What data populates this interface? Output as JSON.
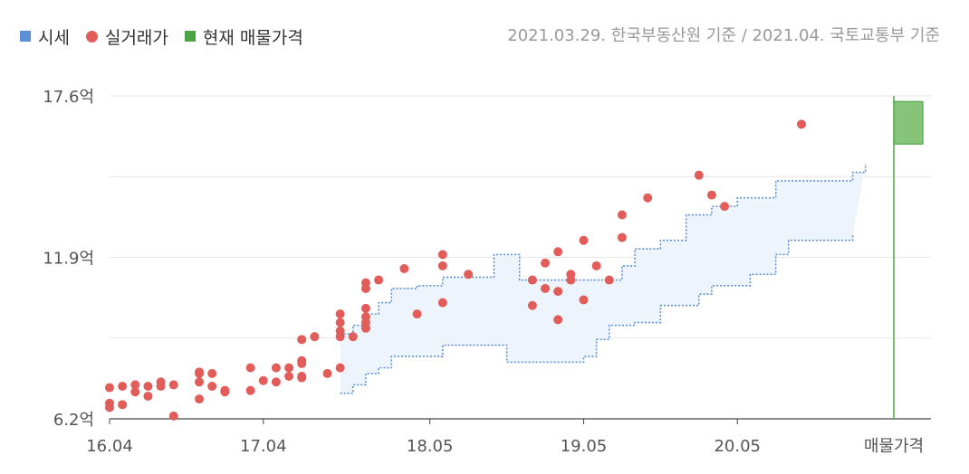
{
  "legend": {
    "market_price": "시세",
    "actual_trade": "실거래가",
    "listing": "현재 매물가격"
  },
  "basis_note": "2021.03.29. 한국부동산원 기준 / 2021.04. 국토교통부 기준",
  "colors": {
    "market_price": "#5b8fd6",
    "market_fill": "#eef4fc",
    "actual_trade": "#e25c59",
    "listing_fill": "#86c47a",
    "listing_line": "#4ca545",
    "grid": "#e6e6e6"
  },
  "chart_data": {
    "type": "scatter",
    "y_unit": "억",
    "ylim": [
      6.2,
      17.6
    ],
    "y_ticks": [
      {
        "value": 6.2,
        "label": "6.2억"
      },
      {
        "value": 11.9,
        "label": "11.9억"
      },
      {
        "value": 17.6,
        "label": "17.6억"
      }
    ],
    "xlim": [
      "2016.04",
      "2021.05"
    ],
    "x_ticks": [
      "16.04",
      "17.04",
      "18.05",
      "19.05",
      "20.05"
    ],
    "x_tick_dates": [
      "2016.04",
      "2017.04",
      "2018.05",
      "2019.05",
      "2020.05"
    ],
    "listing_label": "매물가격",
    "grid": true,
    "legend_position": "top-left",
    "series": [
      {
        "name": "시세",
        "type": "band",
        "upper": [
          [
            "2017.10",
            9.2
          ],
          [
            "2017.11",
            9.5
          ],
          [
            "2017.12",
            9.9
          ],
          [
            "2018.01",
            10.3
          ],
          [
            "2018.02",
            10.8
          ],
          [
            "2018.04",
            10.9
          ],
          [
            "2018.06",
            11.2
          ],
          [
            "2018.09",
            11.2
          ],
          [
            "2018.10",
            12.0
          ],
          [
            "2018.11",
            12.0
          ],
          [
            "2018.12",
            11.1
          ],
          [
            "2019.03",
            11.1
          ],
          [
            "2019.06",
            11.1
          ],
          [
            "2019.08",
            11.6
          ],
          [
            "2019.09",
            12.2
          ],
          [
            "2019.11",
            12.5
          ],
          [
            "2020.01",
            13.4
          ],
          [
            "2020.03",
            13.7
          ],
          [
            "2020.05",
            14.0
          ],
          [
            "2020.07",
            14.0
          ],
          [
            "2020.08",
            14.6
          ],
          [
            "2020.10",
            14.6
          ],
          [
            "2021.01",
            14.6
          ],
          [
            "2021.02",
            14.9
          ],
          [
            "2021.03",
            15.2
          ]
        ],
        "lower": [
          [
            "2017.10",
            7.1
          ],
          [
            "2017.11",
            7.4
          ],
          [
            "2017.12",
            7.8
          ],
          [
            "2018.01",
            8.0
          ],
          [
            "2018.02",
            8.4
          ],
          [
            "2018.04",
            8.4
          ],
          [
            "2018.06",
            8.8
          ],
          [
            "2018.09",
            8.8
          ],
          [
            "2018.10",
            8.8
          ],
          [
            "2018.11",
            8.2
          ],
          [
            "2018.12",
            8.2
          ],
          [
            "2019.03",
            8.2
          ],
          [
            "2019.05",
            8.4
          ],
          [
            "2019.06",
            9.0
          ],
          [
            "2019.07",
            9.5
          ],
          [
            "2019.09",
            9.6
          ],
          [
            "2019.11",
            10.2
          ],
          [
            "2020.02",
            10.6
          ],
          [
            "2020.03",
            10.9
          ],
          [
            "2020.06",
            11.3
          ],
          [
            "2020.08",
            12.0
          ],
          [
            "2020.09",
            12.5
          ],
          [
            "2020.11",
            12.5
          ],
          [
            "2021.01",
            12.5
          ],
          [
            "2021.02",
            12.7
          ]
        ]
      },
      {
        "name": "실거래가",
        "type": "scatter",
        "points": [
          [
            "2016.04",
            6.6
          ],
          [
            "2016.04",
            6.75
          ],
          [
            "2016.04",
            7.3
          ],
          [
            "2016.05",
            6.7
          ],
          [
            "2016.05",
            7.35
          ],
          [
            "2016.06",
            7.15
          ],
          [
            "2016.06",
            7.4
          ],
          [
            "2016.07",
            7.0
          ],
          [
            "2016.07",
            7.35
          ],
          [
            "2016.08",
            7.35
          ],
          [
            "2016.08",
            7.5
          ],
          [
            "2016.09",
            6.3
          ],
          [
            "2016.09",
            7.4
          ],
          [
            "2016.11",
            6.9
          ],
          [
            "2016.11",
            7.5
          ],
          [
            "2016.11",
            7.8
          ],
          [
            "2016.11",
            7.85
          ],
          [
            "2016.12",
            7.35
          ],
          [
            "2016.12",
            7.8
          ],
          [
            "2017.01",
            7.15
          ],
          [
            "2017.01",
            7.2
          ],
          [
            "2017.03",
            7.2
          ],
          [
            "2017.03",
            8.0
          ],
          [
            "2017.04",
            7.55
          ],
          [
            "2017.05",
            7.5
          ],
          [
            "2017.05",
            8.0
          ],
          [
            "2017.06",
            7.7
          ],
          [
            "2017.06",
            8.0
          ],
          [
            "2017.07",
            7.65
          ],
          [
            "2017.07",
            7.7
          ],
          [
            "2017.07",
            8.15
          ],
          [
            "2017.07",
            8.25
          ],
          [
            "2017.07",
            9.0
          ],
          [
            "2017.08",
            9.1
          ],
          [
            "2017.09",
            7.8
          ],
          [
            "2017.10",
            8.0
          ],
          [
            "2017.10",
            9.1
          ],
          [
            "2017.10",
            9.3
          ],
          [
            "2017.10",
            9.6
          ],
          [
            "2017.10",
            9.9
          ],
          [
            "2017.11",
            9.1
          ],
          [
            "2017.12",
            9.4
          ],
          [
            "2017.12",
            9.6
          ],
          [
            "2017.12",
            9.8
          ],
          [
            "2017.12",
            10.1
          ],
          [
            "2017.12",
            10.8
          ],
          [
            "2017.12",
            11.0
          ],
          [
            "2018.01",
            11.1
          ],
          [
            "2018.03",
            11.5
          ],
          [
            "2018.04",
            9.9
          ],
          [
            "2018.06",
            10.3
          ],
          [
            "2018.06",
            11.6
          ],
          [
            "2018.06",
            12.0
          ],
          [
            "2018.08",
            11.3
          ],
          [
            "2019.01",
            10.2
          ],
          [
            "2019.01",
            11.1
          ],
          [
            "2019.02",
            10.8
          ],
          [
            "2019.02",
            11.7
          ],
          [
            "2019.03",
            9.7
          ],
          [
            "2019.03",
            10.7
          ],
          [
            "2019.03",
            12.1
          ],
          [
            "2019.04",
            11.1
          ],
          [
            "2019.04",
            11.3
          ],
          [
            "2019.05",
            10.4
          ],
          [
            "2019.05",
            12.5
          ],
          [
            "2019.06",
            11.6
          ],
          [
            "2019.07",
            11.1
          ],
          [
            "2019.08",
            12.6
          ],
          [
            "2019.08",
            13.4
          ],
          [
            "2019.10",
            14.0
          ],
          [
            "2020.02",
            14.8
          ],
          [
            "2020.03",
            14.1
          ],
          [
            "2020.04",
            13.7
          ],
          [
            "2020.10",
            16.6
          ]
        ]
      },
      {
        "name": "현재 매물가격",
        "type": "range",
        "min": 15.9,
        "max": 17.4
      }
    ]
  }
}
